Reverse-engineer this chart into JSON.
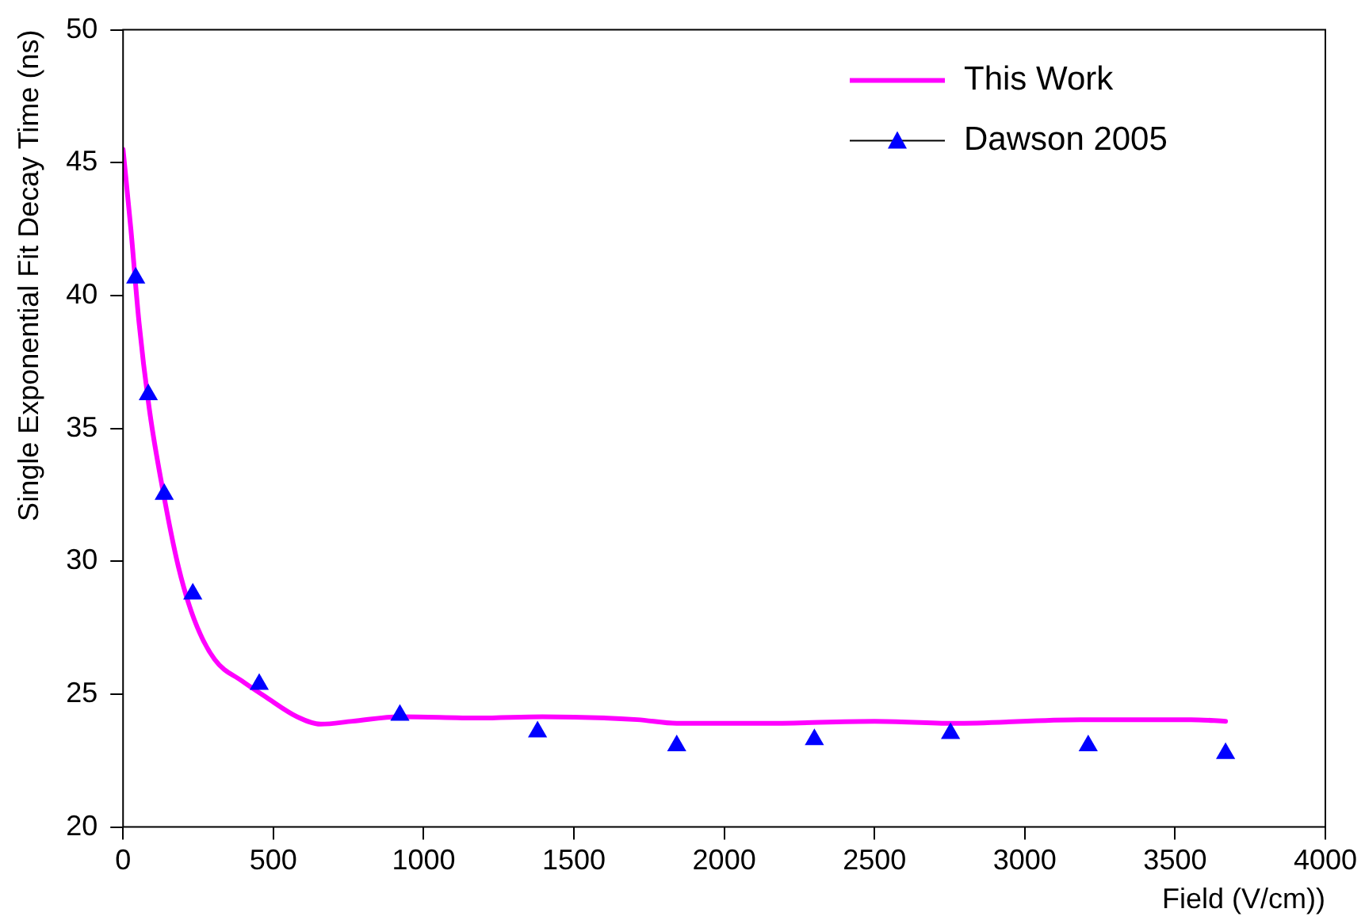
{
  "chart_data": {
    "type": "line",
    "xlabel": "Field (V/cm))",
    "ylabel": "Single Exponential Fit Decay Time (ns)",
    "xlim": [
      0,
      4000
    ],
    "xticks": [
      0,
      500,
      1000,
      1500,
      2000,
      2500,
      3000,
      3500,
      4000
    ],
    "ylim": [
      20,
      50
    ],
    "yticks": [
      20,
      25,
      30,
      35,
      40,
      45,
      50
    ],
    "grid": false,
    "legend": "top right",
    "series": [
      {
        "name": "This Work",
        "color": "#ff00ff",
        "marker": "none",
        "x": [
          0,
          26,
          53,
          89,
          132,
          184,
          237,
          305,
          395,
          474,
          579,
          658,
          763,
          921,
          1184,
          1395,
          1711,
          1842,
          2132,
          2500,
          2763,
          3184,
          3553,
          3668
        ],
        "values": [
          45.5,
          42.5,
          39.0,
          35.6,
          32.7,
          29.8,
          27.8,
          26.3,
          25.5,
          24.9,
          24.15,
          23.87,
          23.98,
          24.15,
          24.1,
          24.15,
          24.04,
          23.9,
          23.9,
          23.98,
          23.9,
          24.04,
          24.04,
          23.98
        ]
      },
      {
        "name": "Dawson 2005",
        "type": "scatter",
        "color": "#0000ff",
        "marker": "triangle",
        "x": [
          42,
          84,
          137,
          232,
          453,
          921,
          1379,
          1842,
          2300,
          2753,
          3211,
          3668
        ],
        "values": [
          40.66,
          36.27,
          32.52,
          28.77,
          25.37,
          24.21,
          23.58,
          23.06,
          23.29,
          23.52,
          23.06,
          22.77
        ]
      }
    ]
  }
}
